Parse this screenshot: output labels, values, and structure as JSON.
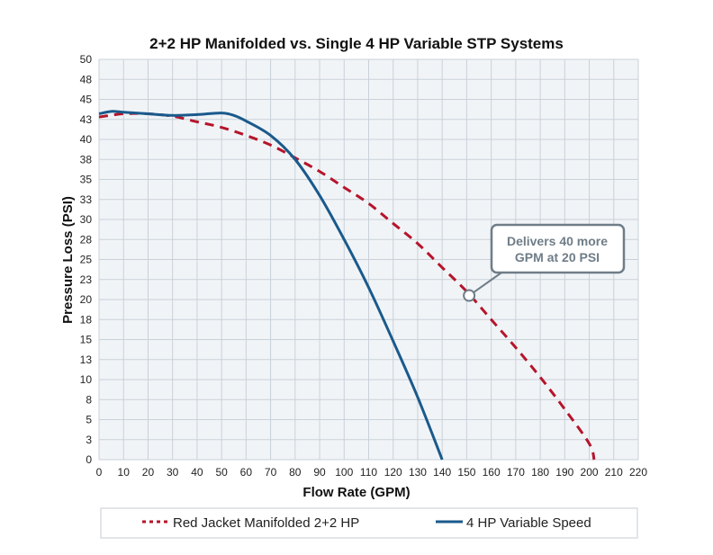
{
  "chart_data": {
    "type": "line",
    "title": "2+2 HP Manifolded vs. Single 4 HP Variable STP Systems",
    "xlabel": "Flow Rate (GPM)",
    "ylabel": "Pressure Loss (PSI)",
    "xlim": [
      0,
      220
    ],
    "ylim": [
      0,
      50
    ],
    "xticks": [
      "0",
      "10",
      "20",
      "30",
      "40",
      "50",
      "60",
      "70",
      "80",
      "90",
      "100",
      "110",
      "120",
      "130",
      "140",
      "150",
      "160",
      "170",
      "180",
      "190",
      "200",
      "210",
      "220"
    ],
    "yticks": [
      "0",
      "3",
      "5",
      "8",
      "10",
      "13",
      "15",
      "18",
      "20",
      "23",
      "25",
      "28",
      "30",
      "33",
      "35",
      "38",
      "40",
      "43",
      "45",
      "48",
      "50"
    ],
    "grid": true,
    "legend_position": "bottom",
    "series": [
      {
        "name": "Red Jacket Manifolded 2+2 HP",
        "color": "#b5152b",
        "style": "dashed",
        "x": [
          0,
          10,
          20,
          30,
          40,
          50,
          60,
          70,
          80,
          90,
          100,
          110,
          120,
          130,
          140,
          150,
          160,
          170,
          180,
          190,
          200,
          202
        ],
        "y": [
          42.8,
          43.2,
          43.2,
          42.9,
          42.2,
          41.5,
          40.5,
          39.3,
          37.7,
          36,
          34,
          32,
          29.5,
          27,
          24,
          21,
          17.5,
          14,
          10.3,
          6.3,
          2,
          0
        ]
      },
      {
        "name": "4 HP Variable Speed",
        "color": "#1a5a8c",
        "style": "solid",
        "x": [
          0,
          5,
          10,
          20,
          30,
          40,
          50,
          55,
          60,
          70,
          80,
          90,
          100,
          110,
          120,
          130,
          140
        ],
        "y": [
          43.2,
          43.5,
          43.4,
          43.2,
          43,
          43.1,
          43.3,
          43,
          42.3,
          40.5,
          37.5,
          33,
          27.5,
          21.5,
          14.8,
          7.8,
          0
        ]
      }
    ],
    "annotation": {
      "lines": [
        "Delivers 40 more",
        "GPM at 20 PSI"
      ],
      "x": 151,
      "y": 20.5
    }
  }
}
